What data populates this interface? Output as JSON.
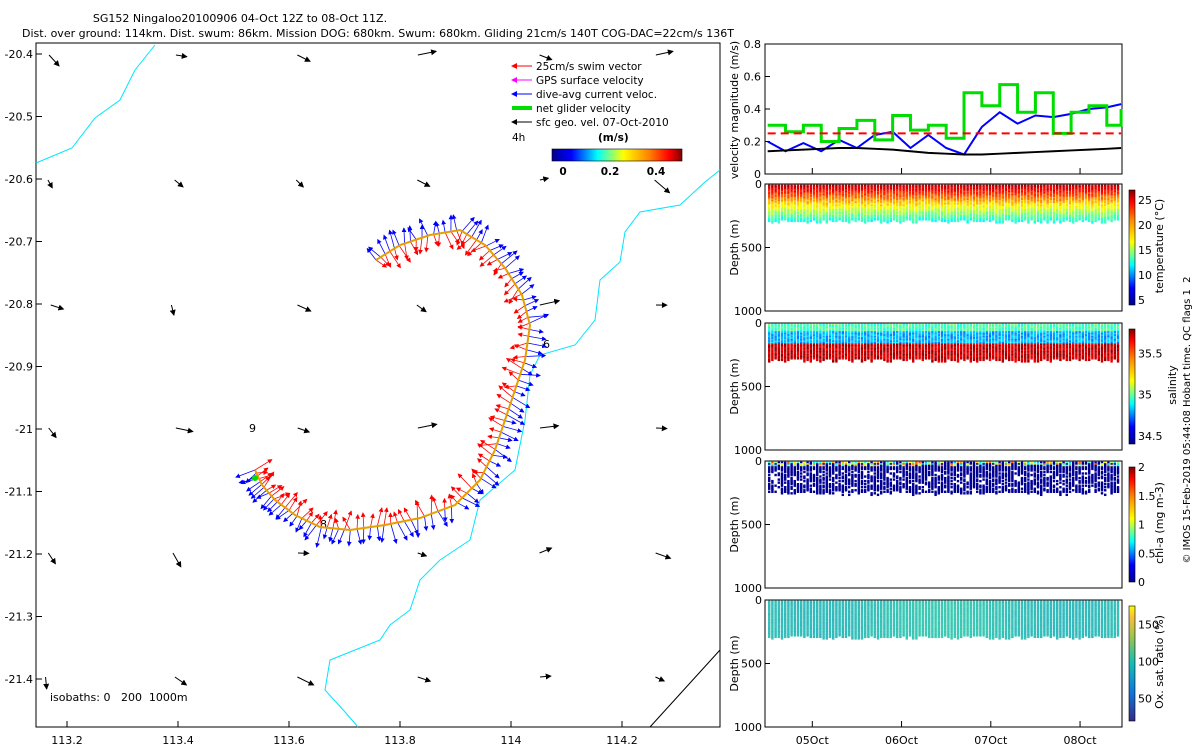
{
  "header": {
    "title_line1": "SG152 Ningaloo20100906 04-Oct 12Z to 08-Oct 11Z.",
    "title_line2": "Dist. over ground: 114km. Dist. swum: 86km. Mission DOG: 680km. Swum: 680km. Gliding 21cm/s 140T COG-DAC=22cm/s 136T"
  },
  "legend": {
    "items": [
      {
        "label": "25cm/s swim vector",
        "color": "#ff0000"
      },
      {
        "label": "GPS surface velocity",
        "color": "#ff00ff"
      },
      {
        "label": "dive-avg current veloc.",
        "color": "#0000ff"
      },
      {
        "label": "net glider velocity",
        "color": "#00dd00"
      },
      {
        "label": "sfc geo. vel. 07-Oct-2010",
        "color": "#000000"
      }
    ],
    "interval": "4h",
    "units": "(m/s)",
    "colorbar_ticks": [
      "0",
      "0.2",
      "0.4"
    ]
  },
  "map": {
    "lon_ticks": [
      "113.2",
      "113.4",
      "113.6",
      "113.8",
      "114",
      "114.2"
    ],
    "lat_ticks": [
      "-20.4",
      "-20.5",
      "-20.6",
      "-20.7",
      "-20.8",
      "-20.9",
      "-21",
      "-21.1",
      "-21.2",
      "-21.3",
      "-21.4"
    ],
    "track_labels": [
      "6",
      "9",
      "8"
    ],
    "isobaths_label": "isobaths: 0   200  1000m"
  },
  "panels": {
    "velocity": {
      "ylabel": "velocity magnitude (m/s)",
      "yticks": [
        "0",
        "0.2",
        "0.4",
        "0.6",
        "0.8"
      ]
    },
    "temperature": {
      "clabel": "temperature (°C)",
      "cticks": [
        "25",
        "20",
        "15",
        "10",
        "5"
      ]
    },
    "salinity": {
      "clabel": "salinity",
      "cticks": [
        "35.5",
        "35",
        "34.5"
      ]
    },
    "chla": {
      "clabel": "chl-a (mg m-3)",
      "cticks": [
        "2",
        "1.5",
        "1",
        "0.5",
        "0"
      ]
    },
    "oxygen": {
      "clabel": "Ox. sat. ratio (%)",
      "cticks": [
        "150",
        "100",
        "50"
      ]
    },
    "depth_label": "Depth (m)",
    "depth_ticks": [
      "0",
      "500",
      "1000"
    ],
    "time_ticks": [
      "05Oct",
      "06Oct",
      "07Oct",
      "08Oct"
    ]
  },
  "watermark": "© IMOS 15-Feb-2019 05:44:08 Hobart time. QC flags 1  2",
  "chart_data": {
    "type": "line",
    "title": "velocity magnitude",
    "xlabel": "",
    "ylabel": "velocity magnitude (m/s)",
    "ylim": [
      0,
      0.8
    ],
    "x": [
      4.5,
      4.7,
      4.9,
      5.1,
      5.3,
      5.5,
      5.7,
      5.9,
      6.1,
      6.3,
      6.5,
      6.7,
      6.9,
      7.1,
      7.3,
      7.5,
      7.7,
      7.9,
      8.1,
      8.3,
      8.46
    ],
    "series": [
      {
        "name": "dive-avg current veloc.",
        "color": "#0000ff",
        "values": [
          0.2,
          0.14,
          0.19,
          0.14,
          0.21,
          0.16,
          0.24,
          0.26,
          0.16,
          0.24,
          0.16,
          0.12,
          0.29,
          0.38,
          0.31,
          0.36,
          0.35,
          0.37,
          0.4,
          0.41,
          0.43
        ]
      },
      {
        "name": "net glider velocity",
        "color": "#00dd00",
        "values": [
          0.3,
          0.26,
          0.3,
          0.2,
          0.28,
          0.33,
          0.21,
          0.36,
          0.27,
          0.3,
          0.22,
          0.5,
          0.42,
          0.55,
          0.38,
          0.5,
          0.25,
          0.38,
          0.42,
          0.3,
          0.4
        ]
      },
      {
        "name": "25cm/s swim vector",
        "color": "#ff0000",
        "values": [
          0.25,
          0.25,
          0.25,
          0.25,
          0.25,
          0.25,
          0.25,
          0.25,
          0.25,
          0.25,
          0.25,
          0.25,
          0.25,
          0.25,
          0.25,
          0.25,
          0.25,
          0.25,
          0.25,
          0.25,
          0.25
        ]
      },
      {
        "name": "sfc geo. vel. 07-Oct-2010",
        "color": "#000000",
        "values": [
          0.14,
          0.145,
          0.15,
          0.155,
          0.16,
          0.16,
          0.155,
          0.15,
          0.14,
          0.13,
          0.125,
          0.12,
          0.12,
          0.125,
          0.13,
          0.135,
          0.14,
          0.145,
          0.15,
          0.155,
          0.16
        ]
      }
    ],
    "time_ticks_days": [
      5,
      6,
      7,
      8
    ]
  }
}
